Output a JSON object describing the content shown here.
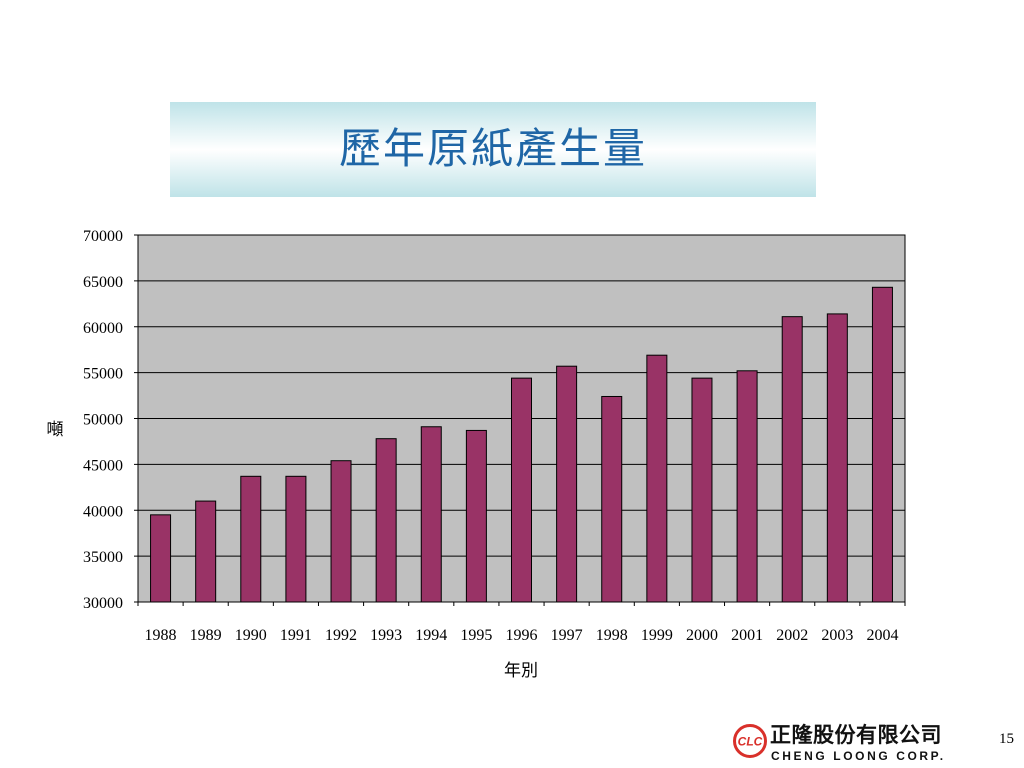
{
  "slide": {
    "page_number": "15"
  },
  "logo": {
    "emblem_text": "CLC",
    "name_zh": "正隆股份有限公司",
    "name_en": "CHENG LOONG CORP."
  },
  "colors": {
    "title_text": "#1f66a6",
    "title_box_edge": "#bfe3e8",
    "title_box_center": "#ffffff",
    "plot_background": "#c0c0c0",
    "bar_fill": "#993366",
    "gridline": "#000000",
    "logo_red": "#d9302a"
  },
  "chart_data": {
    "type": "bar",
    "title": "歷年原紙產生量",
    "xlabel": "年別",
    "ylabel": "噸",
    "categories": [
      "1988",
      "1989",
      "1990",
      "1991",
      "1992",
      "1993",
      "1994",
      "1995",
      "1996",
      "1997",
      "1998",
      "1999",
      "2000",
      "2001",
      "2002",
      "2003",
      "2004"
    ],
    "values": [
      39500,
      41000,
      43700,
      43700,
      45400,
      47800,
      49100,
      48700,
      54400,
      55700,
      52400,
      56900,
      54400,
      55200,
      61100,
      61400,
      64300
    ],
    "ylim": [
      30000,
      70000
    ],
    "yticks": [
      30000,
      35000,
      40000,
      45000,
      50000,
      55000,
      60000,
      65000,
      70000
    ],
    "grid": true,
    "legend": "none"
  }
}
